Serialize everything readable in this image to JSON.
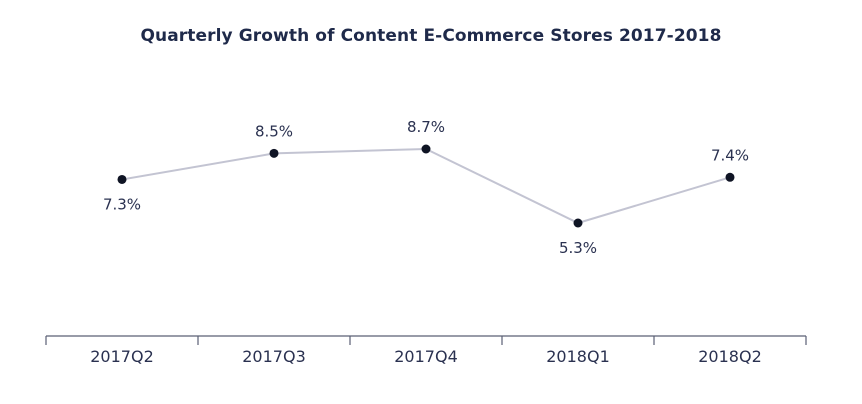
{
  "chart_data": {
    "type": "line",
    "title": "Quarterly Growth of Content E-Commerce Stores 2017-2018",
    "categories": [
      "2017Q2",
      "2017Q3",
      "2017Q4",
      "2018Q1",
      "2018Q2"
    ],
    "series": [
      {
        "values": [
          7.3,
          8.5,
          8.7,
          5.3,
          7.4
        ],
        "labels": [
          "7.3%",
          "8.5%",
          "8.7%",
          "5.3%",
          "7.4%"
        ],
        "color": "#c3c4d2",
        "marker_color": "#0f1424"
      }
    ],
    "xlabel": "",
    "ylabel": "",
    "y_axis_visible": false,
    "grid": false,
    "legend": "none"
  }
}
